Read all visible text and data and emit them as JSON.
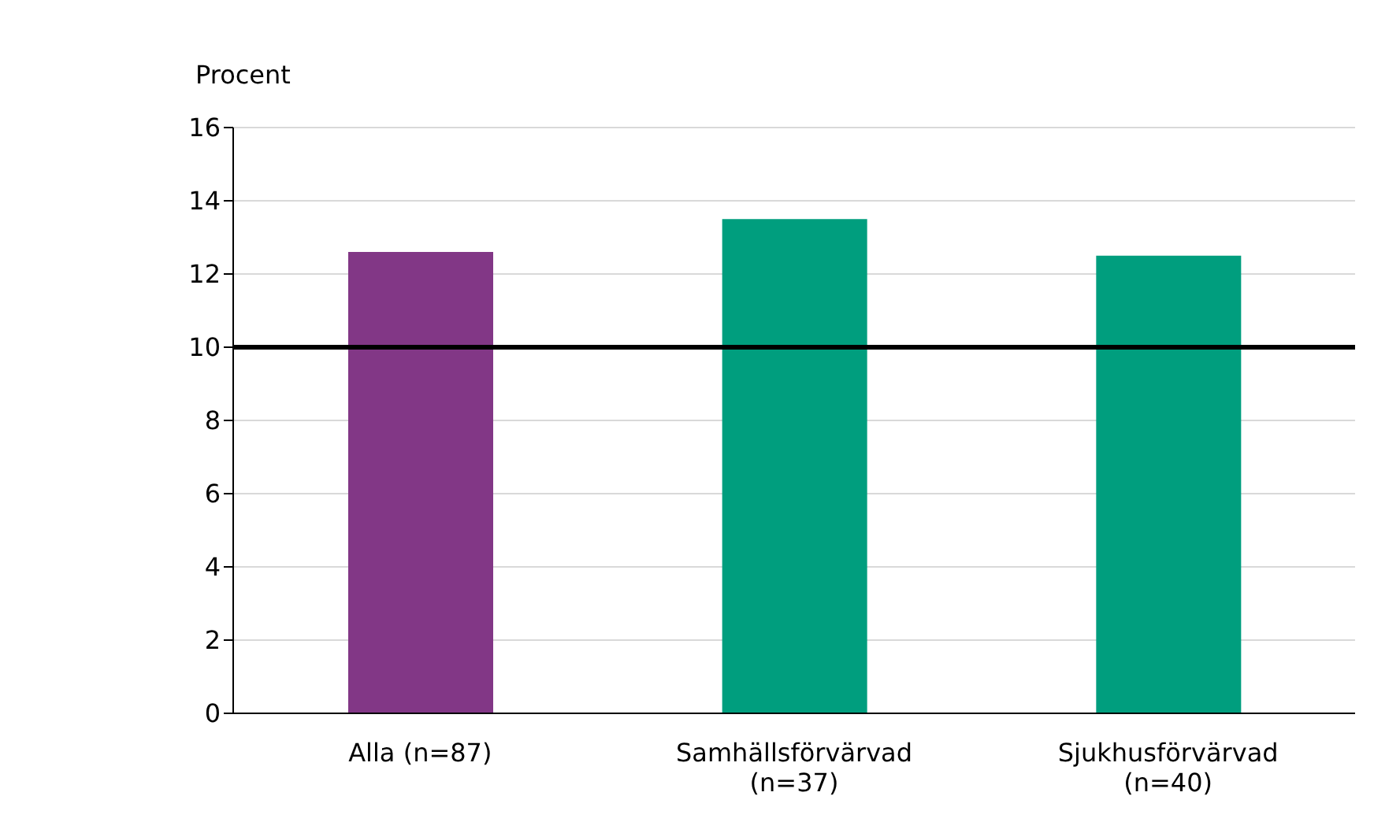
{
  "chart_data": {
    "type": "bar",
    "ylabel": "Procent",
    "categories": [
      "Alla (n=87)",
      "Samhällsförvärvad (n=37)",
      "Sjukhusförvärvad (n=40)"
    ],
    "values": [
      12.6,
      13.5,
      12.5
    ],
    "colors": [
      "#823786",
      "#009e7e",
      "#009e7e"
    ],
    "ylim": [
      0,
      16
    ],
    "yticks": [
      0,
      2,
      4,
      6,
      8,
      10,
      12,
      14,
      16
    ],
    "grid": "y",
    "ref_lines": [
      {
        "axis": "y",
        "value": 10,
        "color": "#000000"
      }
    ]
  }
}
